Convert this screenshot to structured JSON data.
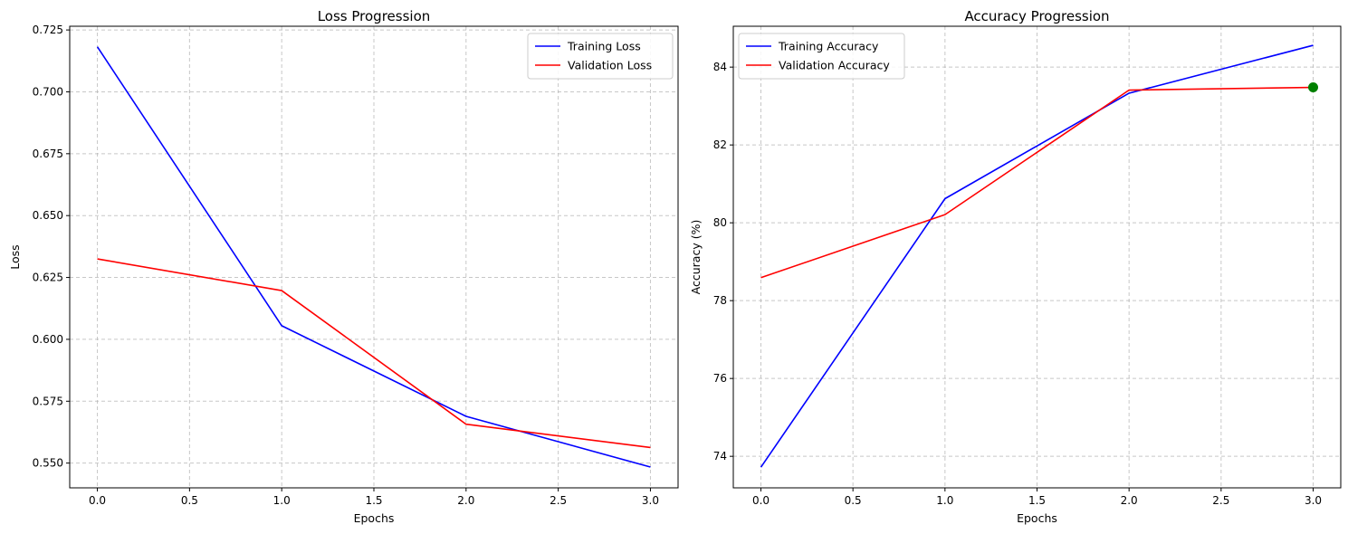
{
  "chart_data": [
    {
      "type": "line",
      "title": "Loss Progression",
      "xlabel": "Epochs",
      "ylabel": "Loss",
      "x": [
        0,
        1,
        2,
        3
      ],
      "xlim": [
        -0.15,
        3.15
      ],
      "ylim": [
        0.54,
        0.7265
      ],
      "xticks": [
        "0.0",
        "0.5",
        "1.0",
        "1.5",
        "2.0",
        "2.5",
        "3.0"
      ],
      "yticks": [
        "0.550",
        "0.575",
        "0.600",
        "0.625",
        "0.650",
        "0.675",
        "0.700",
        "0.725"
      ],
      "grid": true,
      "legend_position": "top-right",
      "series": [
        {
          "name": "Training Loss",
          "color": "#0000ff",
          "values": [
            0.7182,
            0.6055,
            0.5689,
            0.5484
          ]
        },
        {
          "name": "Validation Loss",
          "color": "#ff0000",
          "values": [
            0.6325,
            0.6197,
            0.5657,
            0.5563
          ]
        }
      ]
    },
    {
      "type": "line",
      "title": "Accuracy Progression",
      "xlabel": "Epochs",
      "ylabel": "Accuracy (%)",
      "x": [
        0,
        1,
        2,
        3
      ],
      "xlim": [
        -0.15,
        3.15
      ],
      "ylim": [
        73.19,
        85.05
      ],
      "xticks": [
        "0.0",
        "0.5",
        "1.0",
        "1.5",
        "2.0",
        "2.5",
        "3.0"
      ],
      "yticks": [
        "74",
        "76",
        "78",
        "80",
        "82",
        "84"
      ],
      "grid": true,
      "legend_position": "top-left",
      "series": [
        {
          "name": "Training Accuracy",
          "color": "#0000ff",
          "values": [
            73.72,
            80.62,
            83.33,
            84.56
          ]
        },
        {
          "name": "Validation Accuracy",
          "color": "#ff0000",
          "values": [
            78.59,
            80.21,
            83.41,
            83.48
          ]
        }
      ],
      "highlight_point": {
        "x": 3,
        "y": 83.48,
        "color": "#008000"
      }
    }
  ]
}
